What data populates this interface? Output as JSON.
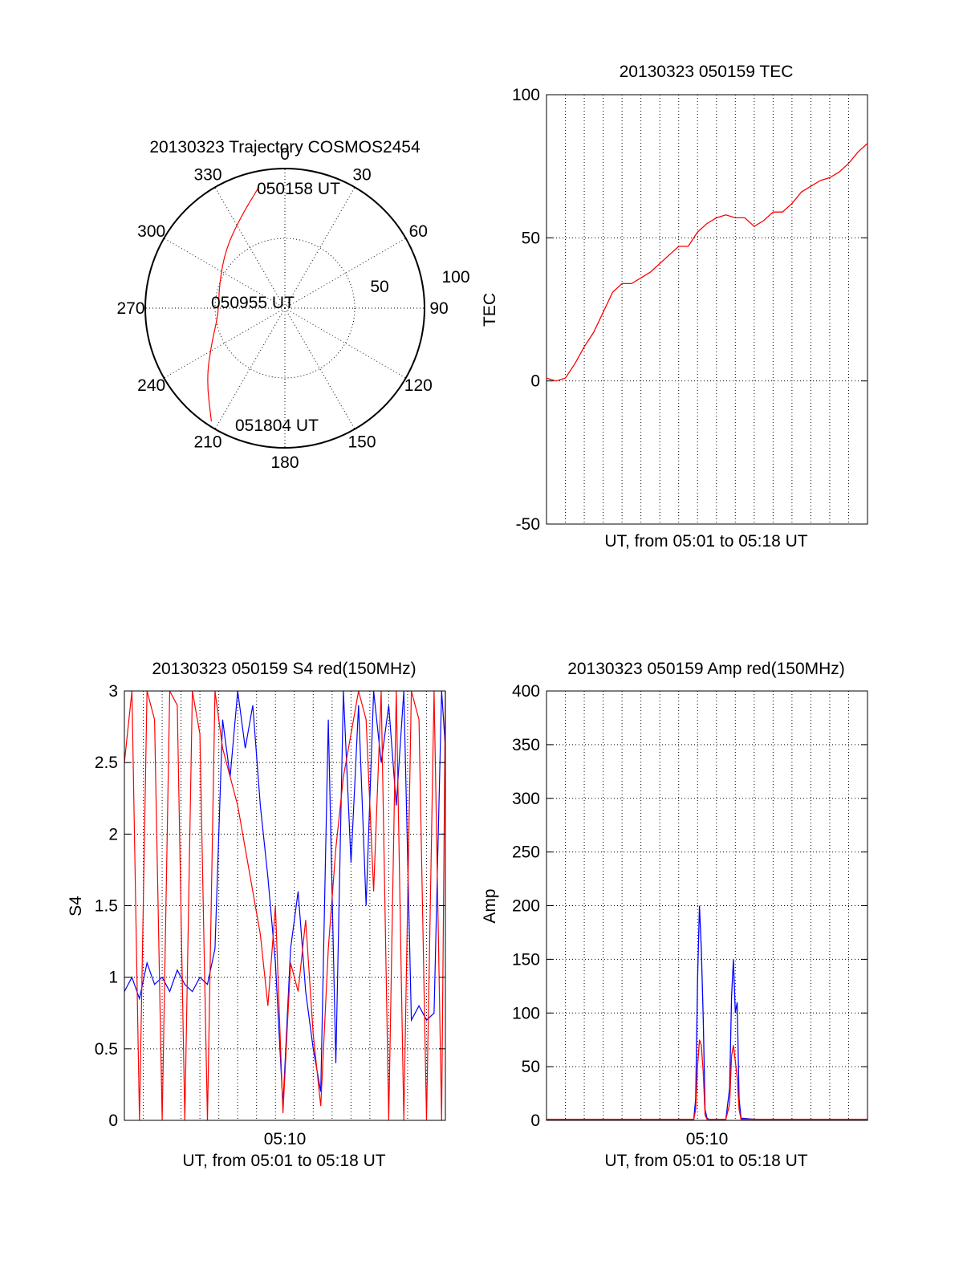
{
  "chart_data": [
    {
      "type": "polar",
      "title": "20130323 Trajectory COSMOS2454",
      "azimuth_labels": [
        "0",
        "30",
        "60",
        "90",
        "120",
        "150",
        "180",
        "210",
        "240",
        "270",
        "300",
        "330"
      ],
      "radial_ticks": [
        {
          "label": "50",
          "elevation": 50
        },
        {
          "label": "100",
          "elevation": 0
        }
      ],
      "trajectory": {
        "color": "#ff0000",
        "points": [
          {
            "az": 348,
            "el": 10
          },
          {
            "az": 335,
            "el": 24
          },
          {
            "az": 315,
            "el": 36
          },
          {
            "az": 290,
            "el": 45
          },
          {
            "az": 265,
            "el": 47
          },
          {
            "az": 245,
            "el": 38
          },
          {
            "az": 228,
            "el": 22
          },
          {
            "az": 213,
            "el": 3
          }
        ]
      },
      "annotations": [
        "050158 UT",
        "050955 UT",
        "051804 UT"
      ]
    },
    {
      "type": "line",
      "title": "20130323 050159 TEC",
      "xlabel": "UT, from 05:01 to 05:18 UT",
      "ylabel": "TEC",
      "xlim": [
        0,
        17
      ],
      "ylim": [
        -50,
        100
      ],
      "yticks": [
        "-50",
        "0",
        "50",
        "100"
      ],
      "x_minor_grid_count": 16,
      "series": [
        {
          "name": "TEC",
          "color": "#ff0000",
          "x": [
            0,
            0.5,
            1,
            1.5,
            2,
            2.5,
            3,
            3.5,
            4,
            4.5,
            5,
            5.5,
            6,
            6.5,
            7,
            7.5,
            8,
            8.5,
            9,
            9.5,
            10,
            10.5,
            11,
            11.5,
            12,
            12.5,
            13,
            13.5,
            14,
            14.5,
            15,
            15.5,
            16,
            16.5,
            17
          ],
          "values": [
            1,
            0,
            1,
            6,
            12,
            17,
            24,
            31,
            34,
            34,
            36,
            38,
            41,
            44,
            47,
            47,
            52,
            55,
            57,
            58,
            57,
            57,
            54,
            56,
            59,
            59,
            62,
            66,
            68,
            70,
            71,
            73,
            76,
            80,
            83
          ]
        }
      ]
    },
    {
      "type": "line",
      "title": "20130323 050159 S4 red(150MHz)",
      "xlabel": "UT, from 05:01 to 05:18 UT",
      "ylabel": "S4",
      "xlim": [
        0,
        17
      ],
      "ylim": [
        0,
        3
      ],
      "yticks": [
        "0",
        "0.5",
        "1",
        "1.5",
        "2",
        "2.5",
        "3"
      ],
      "xtick_labels": [
        {
          "x": 8.5,
          "label": "05:10"
        }
      ],
      "series": [
        {
          "name": "blue",
          "color": "#0000ff",
          "x": [
            0,
            0.4,
            0.8,
            1.2,
            1.6,
            2.0,
            2.4,
            2.8,
            3.2,
            3.6,
            4.0,
            4.4,
            4.8,
            5.2,
            5.6,
            6.0,
            6.4,
            6.8,
            7.2,
            7.6,
            8.0,
            8.4,
            8.8,
            9.2,
            9.6,
            10.0,
            10.4,
            10.8,
            11.2,
            11.6,
            12.0,
            12.4,
            12.8,
            13.2,
            13.6,
            14.0,
            14.4,
            14.8,
            15.2,
            15.6,
            16.0,
            16.4,
            16.8,
            17.0
          ],
          "values": [
            0.9,
            1.0,
            0.85,
            1.1,
            0.95,
            1.0,
            0.9,
            1.05,
            0.95,
            0.9,
            1.0,
            0.95,
            1.2,
            2.8,
            2.4,
            3.0,
            2.6,
            2.9,
            2.2,
            1.7,
            1.1,
            0.1,
            1.2,
            1.6,
            0.9,
            0.5,
            0.2,
            2.8,
            0.4,
            3.0,
            1.8,
            2.9,
            1.5,
            3.0,
            2.5,
            2.9,
            2.2,
            3.0,
            0.7,
            0.8,
            0.7,
            0.75,
            3.0,
            2.6
          ]
        },
        {
          "name": "red",
          "color": "#ff0000",
          "x": [
            0,
            0.4,
            0.8,
            1.2,
            1.6,
            2.0,
            2.4,
            2.8,
            3.2,
            3.6,
            4.0,
            4.4,
            4.8,
            5.2,
            5.6,
            6.0,
            6.4,
            6.8,
            7.2,
            7.6,
            8.0,
            8.4,
            8.8,
            9.2,
            9.6,
            10.0,
            10.4,
            10.8,
            11.2,
            11.6,
            12.0,
            12.4,
            12.8,
            13.2,
            13.6,
            14.0,
            14.4,
            14.8,
            15.2,
            15.6,
            16.0,
            16.4,
            16.8,
            17.0
          ],
          "values": [
            2.5,
            3.0,
            0.0,
            3.0,
            2.8,
            0.0,
            3.0,
            2.9,
            0.0,
            3.0,
            2.7,
            0.0,
            3.0,
            2.6,
            2.4,
            2.2,
            1.9,
            1.6,
            1.3,
            0.8,
            1.5,
            0.05,
            1.1,
            0.9,
            1.4,
            0.6,
            0.1,
            1.2,
            1.9,
            2.4,
            2.7,
            3.0,
            2.8,
            1.6,
            3.0,
            0.0,
            3.0,
            0.0,
            3.0,
            2.8,
            0.0,
            3.0,
            0.0,
            3.0
          ]
        }
      ]
    },
    {
      "type": "line",
      "title": "20130323 050159 Amp red(150MHz)",
      "xlabel": "UT, from 05:01 to 05:18 UT",
      "ylabel": "Amp",
      "xlim": [
        0,
        17
      ],
      "ylim": [
        0,
        400
      ],
      "yticks": [
        "0",
        "50",
        "100",
        "150",
        "200",
        "250",
        "300",
        "350",
        "400"
      ],
      "xtick_labels": [
        {
          "x": 8.5,
          "label": "05:10"
        }
      ],
      "series": [
        {
          "name": "blue",
          "color": "#0000ff",
          "x": [
            0,
            7.8,
            7.9,
            8.0,
            8.1,
            8.2,
            8.3,
            8.4,
            8.5,
            8.6,
            9.5,
            9.7,
            9.8,
            9.9,
            10.0,
            10.1,
            10.2,
            10.3,
            11.0,
            17
          ],
          "values": [
            1,
            1,
            20,
            130,
            200,
            160,
            95,
            10,
            2,
            1,
            1,
            30,
            115,
            150,
            100,
            110,
            20,
            2,
            1,
            1
          ]
        },
        {
          "name": "red",
          "color": "#ff0000",
          "x": [
            0,
            7.8,
            7.9,
            8.0,
            8.1,
            8.2,
            8.3,
            8.4,
            8.5,
            8.6,
            9.5,
            9.7,
            9.8,
            9.9,
            10.0,
            10.1,
            10.2,
            10.3,
            11.0,
            17
          ],
          "values": [
            1,
            1,
            10,
            50,
            75,
            70,
            45,
            5,
            1,
            1,
            1,
            15,
            60,
            70,
            55,
            40,
            10,
            1,
            1,
            1
          ]
        }
      ]
    }
  ]
}
